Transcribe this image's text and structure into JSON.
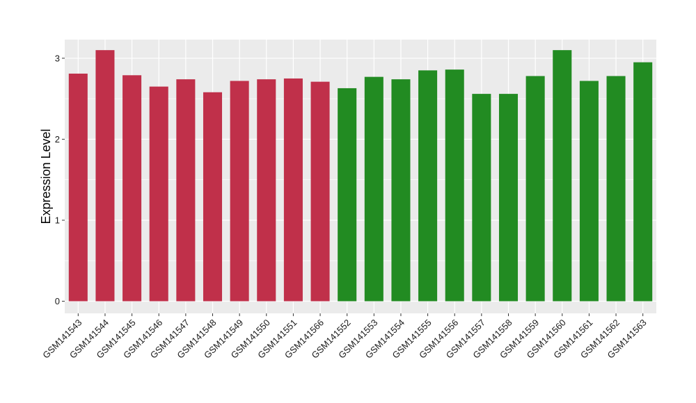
{
  "chart_data": {
    "type": "bar",
    "title": "",
    "xlabel": "",
    "ylabel": "Expression Level",
    "ylim": [
      -0.15,
      3.23
    ],
    "yticks": [
      0,
      1,
      2,
      3
    ],
    "grid": true,
    "legend": "none",
    "categories": [
      "GSM141543",
      "GSM141544",
      "GSM141545",
      "GSM141546",
      "GSM141547",
      "GSM141548",
      "GSM141549",
      "GSM141550",
      "GSM141551",
      "GSM141566",
      "GSM141552",
      "GSM141553",
      "GSM141554",
      "GSM141555",
      "GSM141556",
      "GSM141557",
      "GSM141558",
      "GSM141559",
      "GSM141560",
      "GSM141561",
      "GSM141562",
      "GSM141563"
    ],
    "values": [
      2.81,
      3.1,
      2.79,
      2.65,
      2.74,
      2.58,
      2.72,
      2.74,
      2.75,
      2.71,
      2.63,
      2.77,
      2.74,
      2.85,
      2.86,
      2.56,
      2.56,
      2.78,
      3.1,
      2.72,
      2.78,
      2.95
    ],
    "bar_colors": [
      "#c0304a",
      "#c0304a",
      "#c0304a",
      "#c0304a",
      "#c0304a",
      "#c0304a",
      "#c0304a",
      "#c0304a",
      "#c0304a",
      "#c0304a",
      "#228b22",
      "#228b22",
      "#228b22",
      "#228b22",
      "#228b22",
      "#228b22",
      "#228b22",
      "#228b22",
      "#228b22",
      "#228b22",
      "#228b22",
      "#228b22"
    ]
  },
  "colors": {
    "panel_background": "#ebebeb",
    "grid_line": "#ffffff",
    "group_1": "#c0304a",
    "group_2": "#228b22"
  }
}
